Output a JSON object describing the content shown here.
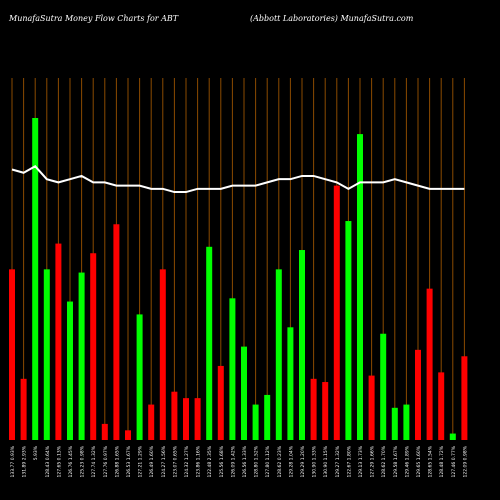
{
  "header": {
    "left": "MunafaSutra  Money Flow  Charts for ABT",
    "right": "(Abbott Laboratories) MunafaSutra.com"
  },
  "colors": {
    "background": "#000000",
    "up": "#00ff00",
    "down": "#ff0000",
    "grid": "#8a4a00",
    "line": "#ffffff",
    "text": "#ffffff"
  },
  "chart_data": {
    "type": "bar",
    "title": "",
    "xlabel": "",
    "ylabel": "",
    "grid": true,
    "ylim": [
      0,
      100
    ],
    "series": [
      {
        "name": "",
        "type": "bar",
        "values": [
          53,
          19,
          100,
          53,
          61,
          43,
          52,
          58,
          5,
          67,
          3,
          39,
          11,
          53,
          15,
          13,
          13,
          60,
          23,
          44,
          29,
          11,
          14,
          53,
          35,
          59,
          19,
          18,
          79,
          68,
          95,
          20,
          33,
          10,
          11,
          28,
          47,
          21,
          2,
          26
        ]
      },
      {
        "name": "",
        "type": "line",
        "values": [
          84,
          83,
          85,
          81,
          80,
          81,
          82,
          80,
          80,
          79,
          79,
          79,
          78,
          78,
          77,
          77,
          78,
          78,
          78,
          79,
          79,
          79,
          80,
          81,
          81,
          82,
          82,
          81,
          80,
          78,
          80,
          80,
          80,
          81,
          80,
          79,
          78,
          78,
          78,
          78
        ]
      }
    ],
    "bar_colors": [
      "red",
      "red",
      "green",
      "green",
      "red",
      "green",
      "green",
      "red",
      "red",
      "red",
      "red",
      "green",
      "red",
      "red",
      "red",
      "red",
      "red",
      "green",
      "red",
      "green",
      "green",
      "green",
      "green",
      "green",
      "green",
      "green",
      "red",
      "red",
      "red",
      "green",
      "green",
      "red",
      "green",
      "green",
      "green",
      "red",
      "red",
      "red",
      "green",
      "red"
    ],
    "categories": [
      "133.77 0.93%",
      "131.89 2.93%",
      "5.93%",
      "128.43 0.64%",
      "127.65 0.13%",
      "126.76 1.45%",
      "125.23 0.98%",
      "127.74 1.32%",
      "127.76 0.97%",
      "126.88 1.65%",
      "126.53 1.67%",
      "127.21 1.29%",
      "126.49 1.60%",
      "124.27 1.56%",
      "123.07 0.65%",
      "124.32 1.27%",
      "123.86 1.16%",
      "122.48 2.35%",
      "125.56 1.68%",
      "126.09 1.42%",
      "126.56 1.33%",
      "128.80 1.52%",
      "127.80 1.12%",
      "128.62 0.23%",
      "129.28 1.04%",
      "129.29 1.20%",
      "130.90 1.33%",
      "130.90 1.15%",
      "129.27 1.32%",
      "122.67 1.80%",
      "129.13 1.73%",
      "127.29 1.66%",
      "128.62 1.70%",
      "129.58 1.67%",
      "129.46 1.89%",
      "129.65 1.60%",
      "128.65 1.54%",
      "128.48 1.72%",
      "127.46 0.77%",
      "122.09 0.98%"
    ]
  }
}
